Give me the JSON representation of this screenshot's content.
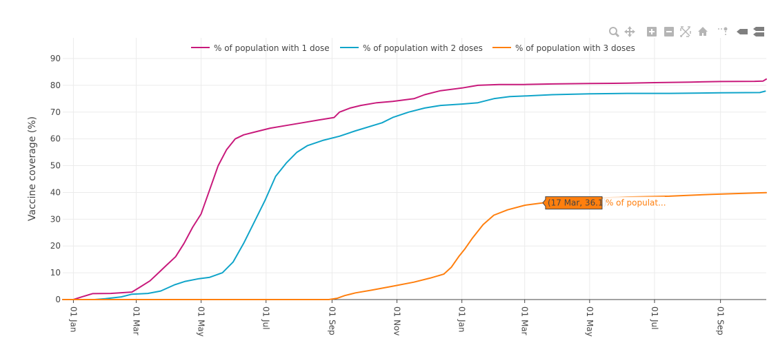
{
  "chart_data": {
    "type": "line",
    "xlabel": "",
    "ylabel": "Vaccine coverage (%)",
    "ylim": [
      0,
      90
    ],
    "yticks": [
      0,
      10,
      20,
      30,
      40,
      50,
      60,
      70,
      80,
      90
    ],
    "grid": true,
    "legend_position": "top",
    "x_range_days": [
      -10,
      651
    ],
    "xticks": [
      {
        "label": "01 Jan",
        "day": 0
      },
      {
        "label": "01 Mar",
        "day": 59
      },
      {
        "label": "01 May",
        "day": 120
      },
      {
        "label": "01 Jul",
        "day": 181
      },
      {
        "label": "01 Sep",
        "day": 243
      },
      {
        "label": "01 Nov",
        "day": 304
      },
      {
        "label": "01 Jan",
        "day": 365
      },
      {
        "label": "01 Mar",
        "day": 424
      },
      {
        "label": "01 May",
        "day": 485
      },
      {
        "label": "01 Jul",
        "day": 546
      },
      {
        "label": "01 Sep",
        "day": 608
      }
    ],
    "series": [
      {
        "name": "% of population with 1 dose",
        "color": "#c8197b",
        "points": [
          [
            -10,
            0
          ],
          [
            0,
            0
          ],
          [
            8,
            1
          ],
          [
            18,
            2.2
          ],
          [
            35,
            2.3
          ],
          [
            55,
            2.8
          ],
          [
            62,
            4.5
          ],
          [
            72,
            7
          ],
          [
            80,
            10
          ],
          [
            88,
            13
          ],
          [
            96,
            16
          ],
          [
            104,
            21
          ],
          [
            112,
            27
          ],
          [
            120,
            32
          ],
          [
            128,
            41
          ],
          [
            136,
            50
          ],
          [
            144,
            56
          ],
          [
            152,
            60
          ],
          [
            160,
            61.5
          ],
          [
            170,
            62.5
          ],
          [
            185,
            64
          ],
          [
            200,
            65
          ],
          [
            215,
            66
          ],
          [
            230,
            67
          ],
          [
            245,
            68
          ],
          [
            250,
            70
          ],
          [
            260,
            71.5
          ],
          [
            270,
            72.5
          ],
          [
            285,
            73.5
          ],
          [
            300,
            74
          ],
          [
            320,
            75
          ],
          [
            330,
            76.5
          ],
          [
            345,
            78
          ],
          [
            365,
            79
          ],
          [
            380,
            80
          ],
          [
            400,
            80.3
          ],
          [
            424,
            80.3
          ],
          [
            450,
            80.5
          ],
          [
            485,
            80.7
          ],
          [
            520,
            80.8
          ],
          [
            546,
            81
          ],
          [
            580,
            81.2
          ],
          [
            608,
            81.4
          ],
          [
            640,
            81.5
          ],
          [
            648,
            81.6
          ],
          [
            651,
            82.3
          ]
        ]
      },
      {
        "name": "% of population with 2 doses",
        "color": "#0fa4c9",
        "points": [
          [
            -10,
            0
          ],
          [
            20,
            0
          ],
          [
            30,
            0.3
          ],
          [
            45,
            1
          ],
          [
            55,
            2
          ],
          [
            70,
            2.3
          ],
          [
            82,
            3.2
          ],
          [
            95,
            5.5
          ],
          [
            105,
            6.8
          ],
          [
            118,
            7.8
          ],
          [
            128,
            8.3
          ],
          [
            140,
            10
          ],
          [
            150,
            14
          ],
          [
            160,
            21
          ],
          [
            170,
            29
          ],
          [
            180,
            37
          ],
          [
            190,
            46
          ],
          [
            200,
            51
          ],
          [
            210,
            55
          ],
          [
            220,
            57.5
          ],
          [
            235,
            59.5
          ],
          [
            250,
            61
          ],
          [
            265,
            63
          ],
          [
            290,
            66
          ],
          [
            300,
            68
          ],
          [
            315,
            70
          ],
          [
            330,
            71.5
          ],
          [
            345,
            72.5
          ],
          [
            365,
            73
          ],
          [
            380,
            73.5
          ],
          [
            395,
            75
          ],
          [
            410,
            75.8
          ],
          [
            424,
            76
          ],
          [
            450,
            76.5
          ],
          [
            485,
            76.8
          ],
          [
            520,
            77
          ],
          [
            560,
            77
          ],
          [
            608,
            77.2
          ],
          [
            645,
            77.3
          ],
          [
            650,
            77.8
          ]
        ]
      },
      {
        "name": "% of population with 3 doses",
        "color": "#ff7f0e",
        "points": [
          [
            -10,
            0
          ],
          [
            240,
            0
          ],
          [
            248,
            0.5
          ],
          [
            255,
            1.5
          ],
          [
            265,
            2.5
          ],
          [
            280,
            3.5
          ],
          [
            300,
            5
          ],
          [
            320,
            6.5
          ],
          [
            335,
            8
          ],
          [
            348,
            9.5
          ],
          [
            355,
            12
          ],
          [
            362,
            16
          ],
          [
            368,
            19
          ],
          [
            375,
            23
          ],
          [
            385,
            28
          ],
          [
            395,
            31.5
          ],
          [
            408,
            33.5
          ],
          [
            424,
            35.2
          ],
          [
            441,
            36.1
          ],
          [
            460,
            37
          ],
          [
            500,
            38
          ],
          [
            520,
            38.3
          ],
          [
            560,
            38.6
          ],
          [
            600,
            39.3
          ],
          [
            640,
            39.8
          ],
          [
            651,
            39.9
          ]
        ]
      }
    ],
    "tooltip": {
      "text": "(17 Mar, 36.1)",
      "series_label": "% of populat...",
      "x_day": 441,
      "y": 36.1
    }
  },
  "toolbar": {
    "icons": [
      "zoom-icon",
      "pan-icon",
      "zoom-in-icon",
      "zoom-out-icon",
      "autoscale-icon",
      "reset-axes-icon",
      "spike-lines-icon",
      "hover-closest-icon",
      "hover-compare-icon"
    ]
  }
}
